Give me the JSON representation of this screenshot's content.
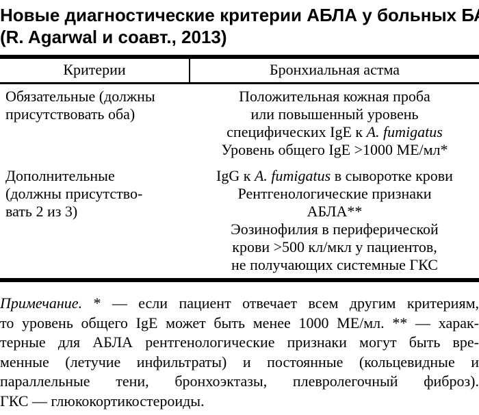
{
  "colors": {
    "text": "#000000",
    "background": "#ffffff",
    "rule": "#000000"
  },
  "title": {
    "line1": "Новые диагностические критерии АБЛА у больных БА",
    "line2": "(R. Agarwal и соавт., 2013)"
  },
  "table": {
    "header": [
      "Критерии",
      "Бронхиальная астма"
    ],
    "rows": [
      {
        "criteria": [
          "Обязательные (должны",
          "присутствовать оба)"
        ],
        "bronchial": [
          {
            "text": "Положительная кожная проба"
          },
          {
            "text": "или повышенный уровень"
          },
          {
            "pre": "специфических IgE к ",
            "italic": "A. fumigatus"
          },
          {
            "text": "Уровень общего IgE >1000 МЕ/мл*"
          }
        ]
      },
      {
        "criteria": [
          "Дополнительные",
          "(должны присутство-",
          "вать 2 из 3)"
        ],
        "bronchial": [
          {
            "pre": "IgG к ",
            "italic": "A. fumigatus",
            "post": " в сыворотке крови"
          },
          {
            "text": "Рентгенологические признаки"
          },
          {
            "text": "АБЛА**"
          },
          {
            "text": "Эозинофилия в периферической"
          },
          {
            "text": "крови >500 кл/мкл у пациентов,"
          },
          {
            "text": "не получающих системные ГКС"
          }
        ]
      }
    ]
  },
  "footnote": {
    "lines": [
      {
        "italic_lead": "Примечание.",
        "rest": " * — если пациент отвечает всем другим критериям,"
      },
      {
        "text": "то уровень общего IgE может быть менее 1000 МЕ/мл. ** — харак-"
      },
      {
        "text": "терные для АБЛА рентгенологические признаки могут быть вре-"
      },
      {
        "text": "менные (летучие инфильтраты) и постоянные (кольцевидные и"
      },
      {
        "text": "параллельные тени, бронхоэктазы, плевролегочный фиброз)."
      },
      {
        "text": "ГКС — глюкокортикостероиды."
      }
    ]
  }
}
